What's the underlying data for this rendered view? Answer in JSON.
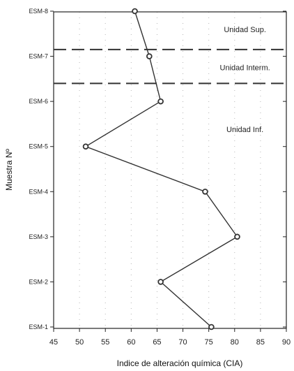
{
  "chart_data": {
    "type": "line",
    "xlabel": "Indice de alteración química (CIA)",
    "ylabel": "Muestra Nº",
    "xlim": [
      45,
      90
    ],
    "xticks": [
      45,
      50,
      55,
      60,
      65,
      70,
      75,
      80,
      85,
      90
    ],
    "categories": [
      "ESM-1",
      "ESM-2",
      "ESM-3",
      "ESM-4",
      "ESM-5",
      "ESM-6",
      "ESM-7",
      "ESM-8"
    ],
    "values": [
      75.5,
      65.7,
      80.5,
      74.3,
      51.2,
      65.7,
      63.5,
      60.7
    ],
    "boundaries": [
      6.4,
      7.15
    ],
    "units": [
      {
        "name": "Unidad Sup.",
        "y": 7.6,
        "x": 82
      },
      {
        "name": "Unidad Interm.",
        "y": 6.75,
        "x": 82
      },
      {
        "name": "Unidad Inf.",
        "y": 5.38,
        "x": 82
      }
    ],
    "grid": "dotted",
    "line_color": "#333333",
    "marker_color": "#333333"
  }
}
